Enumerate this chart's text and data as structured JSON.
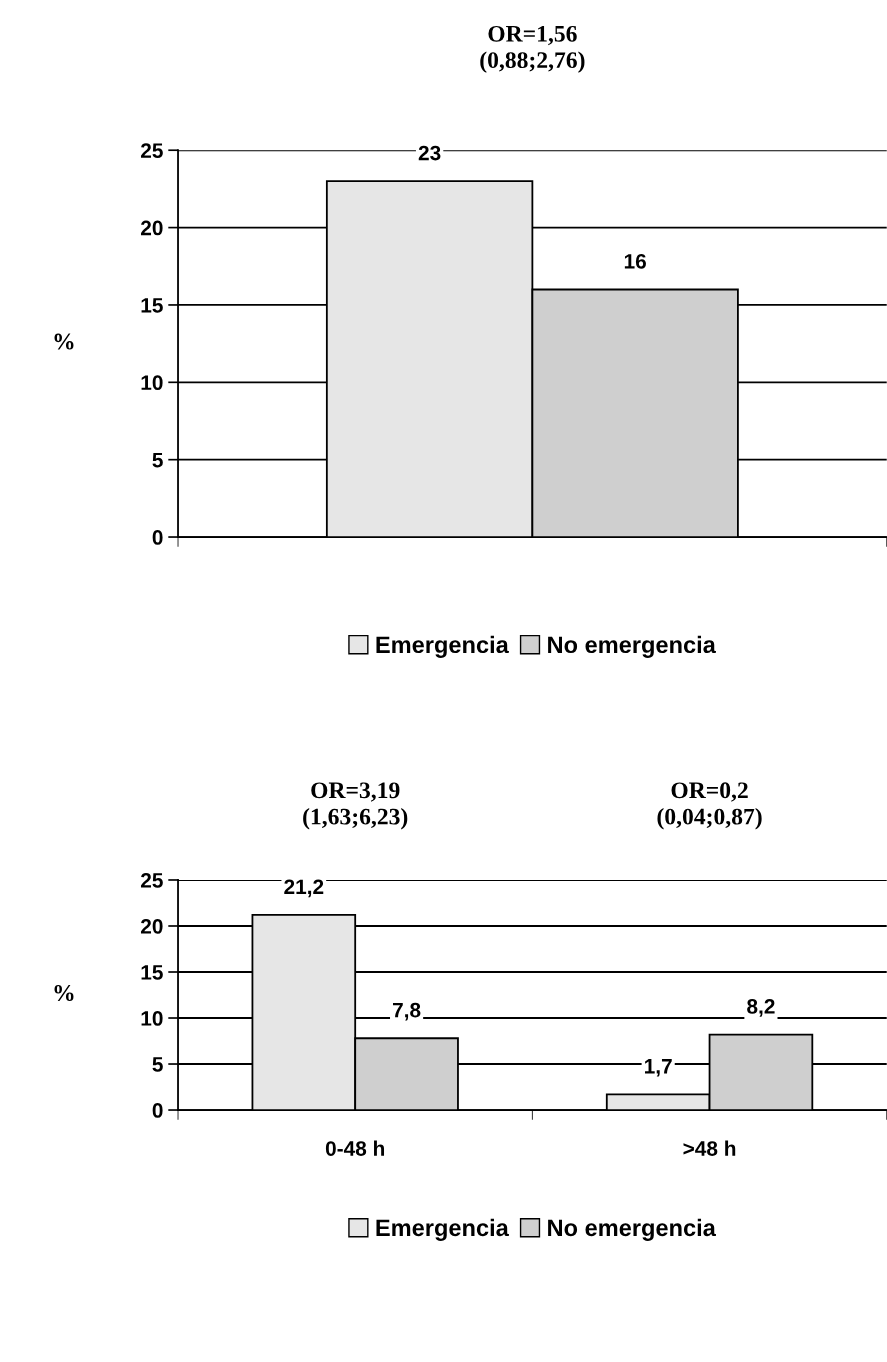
{
  "chart_data": [
    {
      "type": "bar",
      "categories": [
        null
      ],
      "ylabel": "%",
      "ylim": [
        0,
        25
      ],
      "yticks": [
        0,
        5,
        10,
        15,
        20,
        25
      ],
      "grid": "y",
      "legend": "bottom",
      "annotations": [
        "OR=1,56\n(0,88;2,76)"
      ],
      "series": [
        {
          "name": "Emergencia",
          "color": "#e6e6e6",
          "values": [
            23
          ],
          "value_labels": [
            "23"
          ]
        },
        {
          "name": "No emergencia",
          "color": "#cfcfcf",
          "values": [
            16
          ],
          "value_labels": [
            "16"
          ]
        }
      ]
    },
    {
      "type": "bar",
      "categories": [
        "0-48 h",
        ">48 h"
      ],
      "ylabel": "%",
      "ylim": [
        0,
        25
      ],
      "yticks": [
        0,
        5,
        10,
        15,
        20,
        25
      ],
      "grid": "y",
      "legend": "bottom",
      "annotations": [
        "OR=3,19\n(1,63;6,23)",
        "OR=0,2\n(0,04;0,87)"
      ],
      "series": [
        {
          "name": "Emergencia",
          "color": "#e6e6e6",
          "values": [
            21.2,
            1.7
          ],
          "value_labels": [
            "21,2",
            "1,7"
          ]
        },
        {
          "name": "No emergencia",
          "color": "#cfcfcf",
          "values": [
            7.8,
            8.2
          ],
          "value_labels": [
            "7,8",
            "8,2"
          ]
        }
      ]
    }
  ]
}
